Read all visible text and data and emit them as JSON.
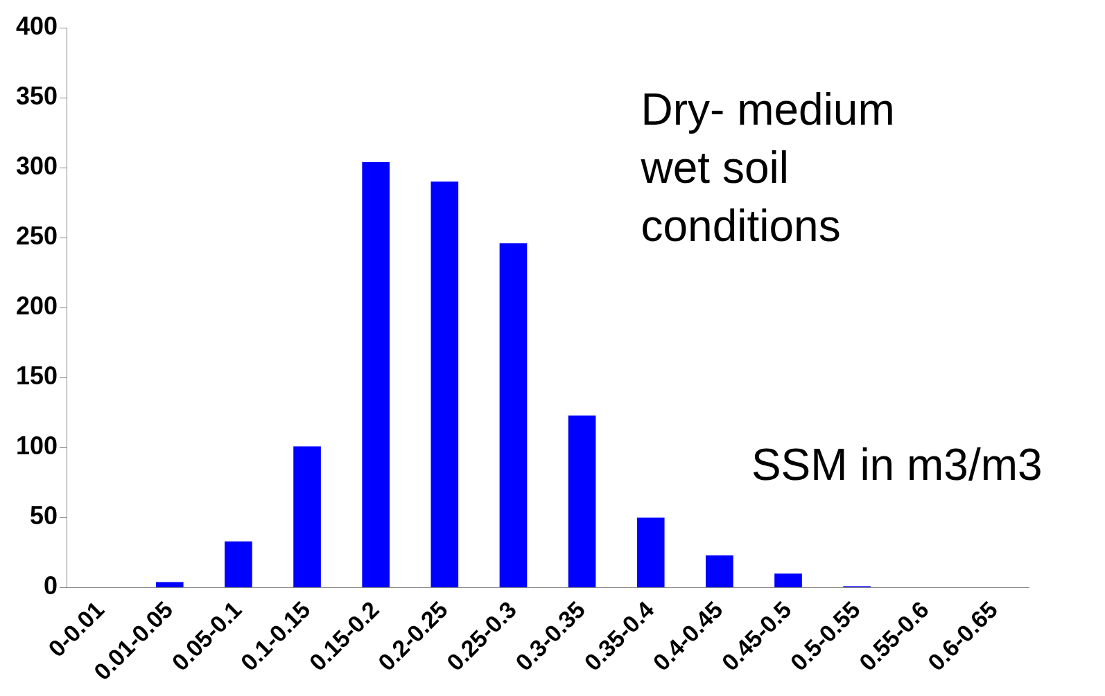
{
  "chart_data": {
    "type": "bar",
    "categories": [
      "0-0.01",
      "0.01-0.05",
      "0.05-0.1",
      "0.1-0.15",
      "0.15-0.2",
      "0.2-0.25",
      "0.25-0.3",
      "0.3-0.35",
      "0.35-0.4",
      "0.4-0.45",
      "0.45-0.5",
      "0.5-0.55",
      "0.55-0.6",
      "0.6-0.65"
    ],
    "values": [
      0,
      4,
      33,
      101,
      304,
      290,
      246,
      123,
      50,
      23,
      10,
      1,
      0,
      0
    ],
    "color": "#0000ff",
    "ylim": [
      0,
      400
    ],
    "yticks": [
      0,
      50,
      100,
      150,
      200,
      250,
      300,
      350,
      400
    ],
    "grid": false,
    "legend": false,
    "annotations": [
      "Dry- medium\nwet soil\nconditions",
      "SSM in m3/m3"
    ]
  }
}
